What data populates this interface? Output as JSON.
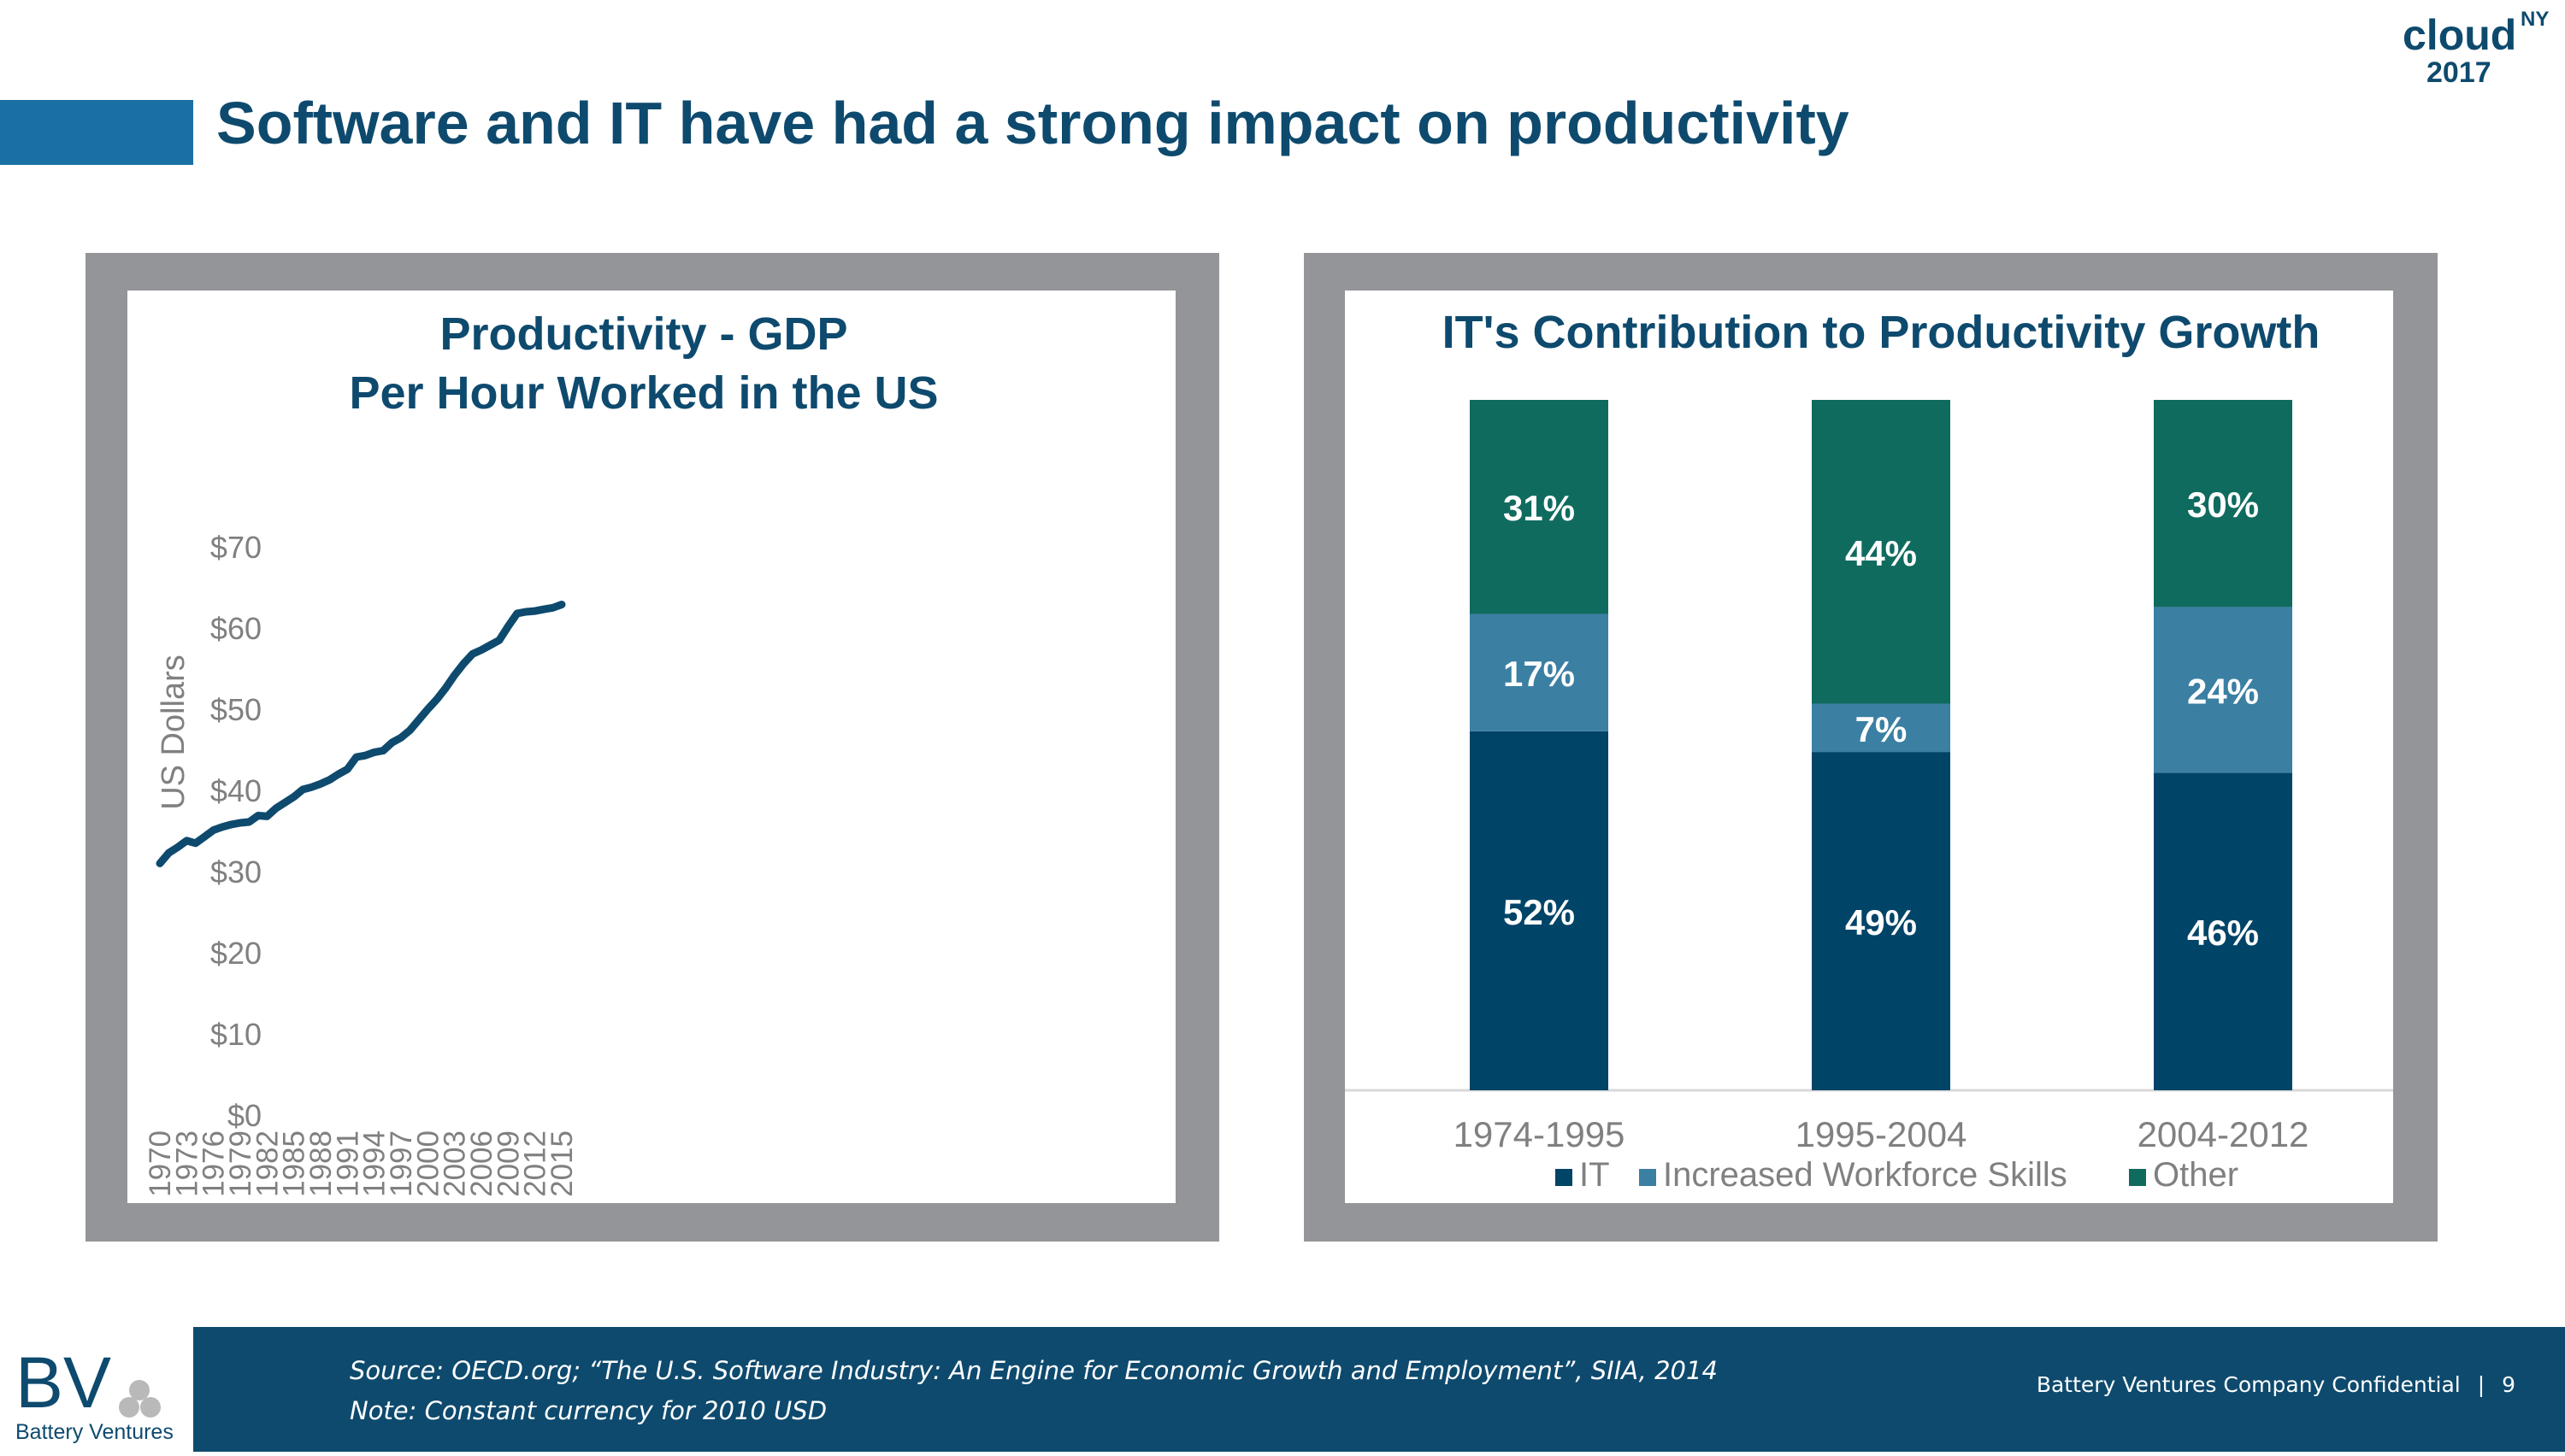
{
  "slide": {
    "title": "Software and IT have had a strong impact on productivity",
    "logo_text": "cloud",
    "logo_superscript": "NY",
    "logo_year": "2017",
    "brand_name": "Battery Ventures",
    "brand_initials": "BV"
  },
  "footer": {
    "source": "Source: OECD.org; “The U.S. Software Industry: An Engine for Economic Growth and Employment”, SIIA, 2014",
    "note": "Note: Constant currency for 2010 USD",
    "confidential": "Battery Ventures Company Confidential",
    "separator": "|",
    "page_number": "9"
  },
  "colors": {
    "title": "#0e4a6e",
    "title_bar": "#1a6fa3",
    "panel_frame": "#949599",
    "it": "#004468",
    "skills": "#3b7fa3",
    "other": "#106b5f",
    "axis_text": "#808080"
  },
  "chart_data": [
    {
      "type": "line",
      "title": "Productivity - GDP",
      "subtitle": "Per Hour Worked in the US",
      "ylabel": "US Dollars",
      "xlabel": "",
      "ylim": [
        0,
        70
      ],
      "y_ticks": [
        "$0",
        "$10",
        "$20",
        "$30",
        "$40",
        "$50",
        "$60",
        "$70"
      ],
      "x_tick_labels": [
        "1970",
        "1973",
        "1976",
        "1979",
        "1982",
        "1985",
        "1988",
        "1991",
        "1994",
        "1997",
        "2000",
        "2003",
        "2006",
        "2009",
        "2012",
        "2015"
      ],
      "grid": false,
      "legend": "none",
      "x": [
        1970,
        1971,
        1972,
        1973,
        1974,
        1975,
        1976,
        1977,
        1978,
        1979,
        1980,
        1981,
        1982,
        1983,
        1984,
        1985,
        1986,
        1987,
        1988,
        1989,
        1990,
        1991,
        1992,
        1993,
        1994,
        1995,
        1996,
        1997,
        1998,
        1999,
        2000,
        2001,
        2002,
        2003,
        2004,
        2005,
        2006,
        2007,
        2008,
        2009,
        2010,
        2011,
        2012,
        2013,
        2014,
        2015
      ],
      "values": [
        31.0,
        32.3,
        33.0,
        33.8,
        33.5,
        34.3,
        35.1,
        35.5,
        35.8,
        36.0,
        36.1,
        36.9,
        36.8,
        37.8,
        38.5,
        39.2,
        40.1,
        40.4,
        40.8,
        41.3,
        42.0,
        42.6,
        44.1,
        44.3,
        44.7,
        44.9,
        45.9,
        46.5,
        47.4,
        48.7,
        50.0,
        51.2,
        52.6,
        54.2,
        55.6,
        56.8,
        57.3,
        57.9,
        58.5,
        60.2,
        61.8,
        62.0,
        62.1,
        62.3,
        62.5,
        62.9
      ]
    },
    {
      "type": "bar",
      "stacked": true,
      "title": "IT's Contribution to Productivity Growth",
      "categories": [
        "1974-1995",
        "1995-2004",
        "2004-2012"
      ],
      "series": [
        {
          "name": "IT",
          "values": [
            52,
            49,
            46
          ],
          "labels": [
            "52%",
            "49%",
            "46%"
          ]
        },
        {
          "name": "Increased Workforce Skills",
          "values": [
            17,
            7,
            24
          ],
          "labels": [
            "17%",
            "7%",
            "24%"
          ]
        },
        {
          "name": "Other",
          "values": [
            31,
            44,
            30
          ],
          "labels": [
            "31%",
            "44%",
            "30%"
          ]
        }
      ],
      "ylim": [
        0,
        100
      ],
      "legend": "bottom",
      "grid": false
    }
  ]
}
